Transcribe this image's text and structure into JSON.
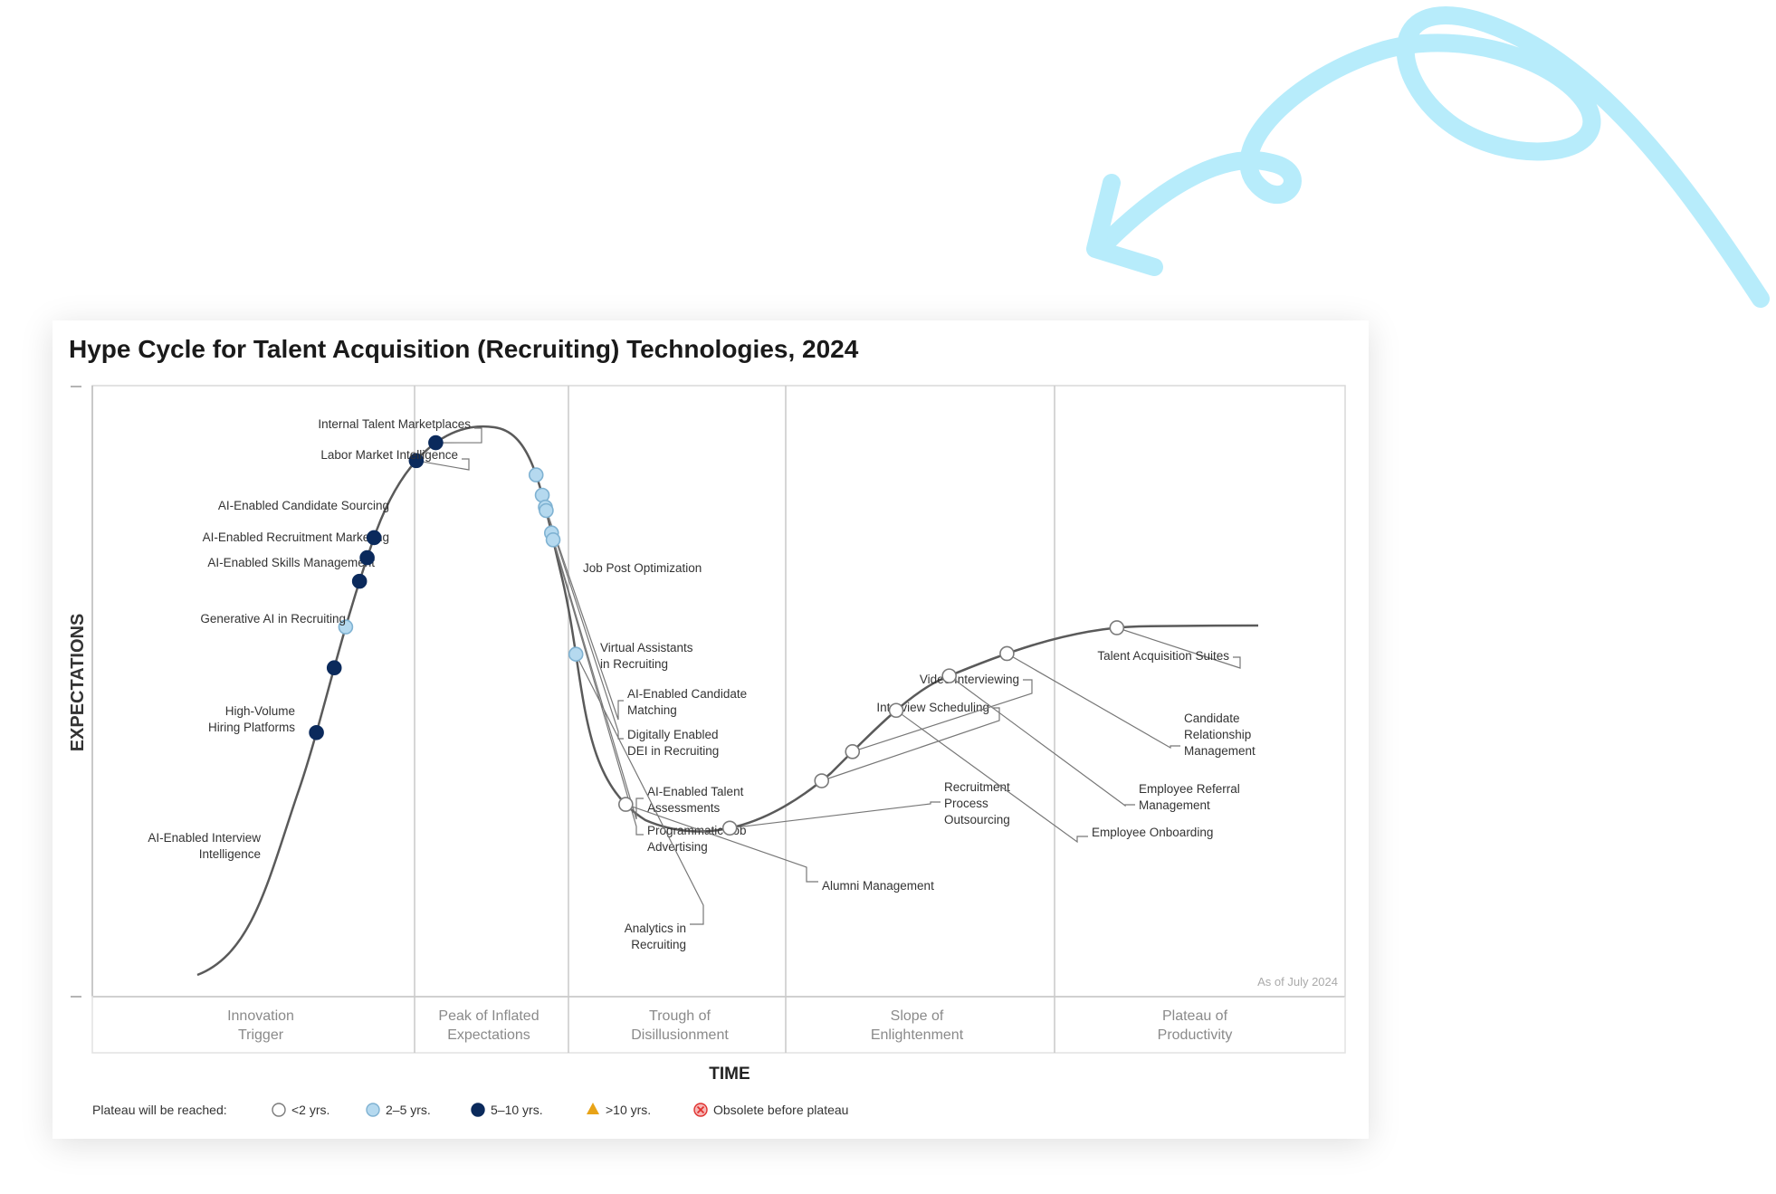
{
  "chart_data": {
    "type": "hype cycle",
    "title": "Hype Cycle for Talent Acquisition (Recruiting) Technologies, 2024",
    "ylabel": "EXPECTATIONS",
    "xlabel": "TIME",
    "as_of": "As of July 2024",
    "phases": [
      {
        "name": "Innovation Trigger",
        "lines": [
          "Innovation",
          "Trigger"
        ]
      },
      {
        "name": "Peak of Inflated Expectations",
        "lines": [
          "Peak of Inflated",
          "Expectations"
        ]
      },
      {
        "name": "Trough of Disillusionment",
        "lines": [
          "Trough of",
          "Disillusionment"
        ]
      },
      {
        "name": "Slope of Enlightenment",
        "lines": [
          "Slope of",
          "Enlightenment"
        ]
      },
      {
        "name": "Plateau of Productivity",
        "lines": [
          "Plateau of",
          "Productivity"
        ]
      }
    ],
    "legend": {
      "label": "Plateau will be reached:",
      "items": [
        {
          "key": "lt2",
          "label": "<2 yrs.",
          "color": "#ffffff"
        },
        {
          "key": "2to5",
          "label": "2–5 yrs.",
          "color": "#b5d9ef"
        },
        {
          "key": "5to10",
          "label": "5–10 yrs.",
          "color": "#0b2a5c"
        },
        {
          "key": "gt10",
          "label": ">10 yrs.",
          "color": "#e8a317"
        },
        {
          "key": "obsolete",
          "label": "Obsolete before plateau",
          "color": "#e0312f"
        }
      ]
    },
    "technologies": [
      {
        "name": [
          "AI-Enabled Interview",
          "Intelligence"
        ],
        "t": 0.157,
        "class": "5to10"
      },
      {
        "name": [
          "High-Volume",
          "Hiring Platforms"
        ],
        "t": 0.195,
        "class": "5to10"
      },
      {
        "name": [
          "Generative AI in Recruiting"
        ],
        "t": 0.219,
        "class": "2to5"
      },
      {
        "name": [
          "AI-Enabled Skills Management"
        ],
        "t": 0.246,
        "class": "5to10"
      },
      {
        "name": [
          "AI-Enabled Recruitment Marketing"
        ],
        "t": 0.26,
        "class": "5to10"
      },
      {
        "name": [
          "AI-Enabled Candidate Sourcing"
        ],
        "t": 0.272,
        "class": "5to10"
      },
      {
        "name": [
          "Labor Market Intelligence"
        ],
        "t": 0.322,
        "class": "5to10"
      },
      {
        "name": [
          "Internal Talent Marketplaces"
        ],
        "t": 0.337,
        "class": "5to10"
      },
      {
        "name": [
          "Job Post Optimization"
        ],
        "t": 0.41,
        "class": "2to5"
      },
      {
        "name": [
          "Virtual Assistants",
          "in Recruiting"
        ],
        "t": 0.422,
        "class": "2to5"
      },
      {
        "name": [
          "AI-Enabled Candidate",
          "Matching"
        ],
        "t": 0.429,
        "class": "2to5"
      },
      {
        "name": [
          "Digitally Enabled",
          "DEI in Recruiting"
        ],
        "t": 0.431,
        "class": "2to5"
      },
      {
        "name": [
          "AI-Enabled Talent",
          "Assessments"
        ],
        "t": 0.444,
        "class": "2to5"
      },
      {
        "name": [
          "Programmatic Job",
          "Advertising"
        ],
        "t": 0.448,
        "class": "2to5"
      },
      {
        "name": [
          "Analytics in",
          "Recruiting"
        ],
        "t": 0.514,
        "class": "2to5"
      },
      {
        "name": [
          "Alumni Management"
        ],
        "t": 0.605,
        "class": "lt2"
      },
      {
        "name": [
          "Recruitment",
          "Process",
          "Outsourcing"
        ],
        "t": 0.668,
        "class": "lt2"
      },
      {
        "name": [
          "Interview Scheduling"
        ],
        "t": 0.727,
        "class": "lt2"
      },
      {
        "name": [
          "Video Interviewing"
        ],
        "t": 0.751,
        "class": "lt2"
      },
      {
        "name": [
          "Employee Onboarding"
        ],
        "t": 0.785,
        "class": "lt2"
      },
      {
        "name": [
          "Employee Referral",
          "Management"
        ],
        "t": 0.821,
        "class": "lt2"
      },
      {
        "name": [
          "Candidate",
          "Relationship",
          "Management"
        ],
        "t": 0.856,
        "class": "lt2"
      },
      {
        "name": [
          "Talent Acquisition Suites"
        ],
        "t": 0.92,
        "class": "lt2"
      }
    ]
  }
}
